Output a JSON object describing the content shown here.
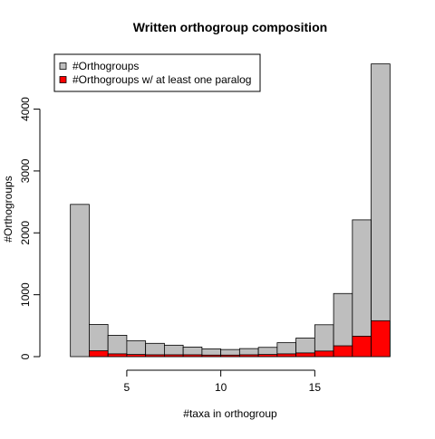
{
  "chart_data": {
    "type": "bar",
    "title": "Written orthogroup composition",
    "xlabel": "#taxa in orthogroup",
    "ylabel": "#Orthogroups",
    "xlim": [
      1.1,
      19.9
    ],
    "ylim": [
      0,
      4900
    ],
    "x_ticks": [
      5,
      10,
      15
    ],
    "y_ticks": [
      0,
      1000,
      2000,
      3000,
      4000
    ],
    "bin_starts": [
      2,
      3,
      4,
      5,
      6,
      7,
      8,
      9,
      10,
      11,
      12,
      13,
      14,
      15,
      16,
      17,
      18
    ],
    "bin_width": 1,
    "series": [
      {
        "name": "#Orthogroups",
        "color": "#bebebe",
        "values": [
          2460,
          520,
          345,
          255,
          215,
          185,
          155,
          125,
          115,
          130,
          150,
          225,
          300,
          515,
          1020,
          2210,
          4730
        ]
      },
      {
        "name": "#Orthogroups w/ at least one paralog",
        "color": "#ff0000",
        "values": [
          0,
          95,
          45,
          35,
          30,
          30,
          30,
          25,
          25,
          30,
          35,
          45,
          60,
          90,
          175,
          330,
          580
        ]
      }
    ],
    "legend_position": "top-left",
    "grid": false
  }
}
